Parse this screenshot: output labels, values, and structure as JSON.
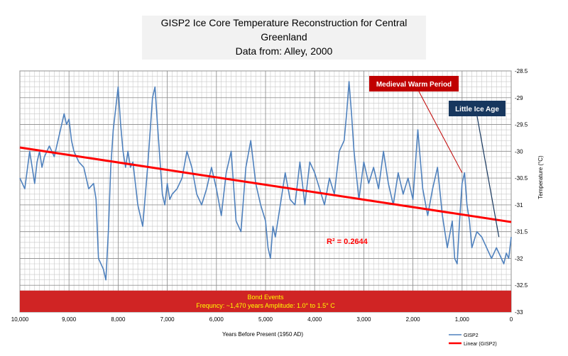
{
  "chart_data": {
    "type": "line",
    "title_lines": [
      "GISP2 Ice Core Temperature Reconstruction for Central",
      "Greenland",
      "Data from: Alley, 2000"
    ],
    "xlabel": "Years Before Present (1950 AD)",
    "ylabel": "Temperature (°C)",
    "x_reversed": true,
    "xlim": [
      10000,
      0
    ],
    "ylim": [
      -33,
      -28.5
    ],
    "x_ticks": [
      10000,
      9000,
      8000,
      7000,
      6000,
      5000,
      4000,
      3000,
      2000,
      1000,
      0
    ],
    "x_tick_labels": [
      "10,000",
      "9,000",
      "8,000",
      "7,000",
      "6,000",
      "5,000",
      "4,000",
      "3,000",
      "2,000",
      "1,000",
      "0"
    ],
    "y_ticks": [
      -28.5,
      -29,
      -29.5,
      -30,
      -30.5,
      -31,
      -31.5,
      -32,
      -32.5,
      -33
    ],
    "y_tick_labels": [
      "-28.5",
      "-29",
      "-29.5",
      "-30",
      "-30.5",
      "-31",
      "-31.5",
      "-32",
      "-32.5",
      "-33"
    ],
    "grid": true,
    "legend_position": "bottom-right",
    "series": [
      {
        "name": "GISP2",
        "color": "#4f81bd",
        "x": [
          10000,
          9900,
          9800,
          9750,
          9700,
          9650,
          9600,
          9550,
          9500,
          9400,
          9300,
          9200,
          9100,
          9050,
          9000,
          8950,
          8900,
          8800,
          8700,
          8600,
          8500,
          8450,
          8400,
          8300,
          8250,
          8200,
          8150,
          8100,
          8000,
          7950,
          7900,
          7850,
          7800,
          7750,
          7700,
          7600,
          7500,
          7400,
          7300,
          7250,
          7200,
          7100,
          7050,
          7000,
          6950,
          6900,
          6800,
          6700,
          6600,
          6500,
          6400,
          6300,
          6200,
          6100,
          6000,
          5900,
          5800,
          5700,
          5600,
          5500,
          5400,
          5300,
          5200,
          5100,
          5000,
          4950,
          4900,
          4850,
          4800,
          4700,
          4600,
          4500,
          4400,
          4300,
          4200,
          4100,
          4000,
          3900,
          3800,
          3700,
          3600,
          3500,
          3400,
          3350,
          3300,
          3250,
          3200,
          3100,
          3000,
          2900,
          2800,
          2700,
          2600,
          2500,
          2400,
          2300,
          2200,
          2100,
          2000,
          1900,
          1800,
          1700,
          1600,
          1500,
          1400,
          1300,
          1200,
          1150,
          1100,
          1050,
          1000,
          950,
          900,
          850,
          800,
          700,
          600,
          500,
          400,
          300,
          200,
          150,
          100,
          50,
          0
        ],
        "values": [
          -30.5,
          -30.7,
          -30.0,
          -30.3,
          -30.6,
          -30.2,
          -30.0,
          -30.3,
          -30.1,
          -29.9,
          -30.1,
          -29.7,
          -29.3,
          -29.5,
          -29.4,
          -29.8,
          -30.0,
          -30.2,
          -30.3,
          -30.7,
          -30.6,
          -30.9,
          -32.0,
          -32.2,
          -32.4,
          -31.5,
          -30.3,
          -29.6,
          -28.8,
          -29.5,
          -30.0,
          -30.3,
          -30.0,
          -30.3,
          -30.2,
          -31.0,
          -31.4,
          -30.3,
          -29.0,
          -28.8,
          -29.5,
          -30.8,
          -31.0,
          -30.6,
          -30.9,
          -30.8,
          -30.7,
          -30.5,
          -30.0,
          -30.3,
          -30.8,
          -31.0,
          -30.7,
          -30.3,
          -30.7,
          -31.2,
          -30.4,
          -30.0,
          -31.3,
          -31.5,
          -30.3,
          -29.8,
          -30.6,
          -31.0,
          -31.3,
          -31.8,
          -32.0,
          -31.4,
          -31.6,
          -31.0,
          -30.4,
          -30.9,
          -31.0,
          -30.2,
          -31.0,
          -30.2,
          -30.4,
          -30.7,
          -31.0,
          -30.5,
          -30.8,
          -30.0,
          -29.8,
          -29.3,
          -28.7,
          -29.3,
          -30.0,
          -30.9,
          -30.2,
          -30.6,
          -30.3,
          -30.7,
          -30.0,
          -30.6,
          -31.0,
          -30.4,
          -30.8,
          -30.5,
          -30.9,
          -29.6,
          -30.7,
          -31.2,
          -30.7,
          -30.3,
          -31.2,
          -31.8,
          -31.3,
          -32.0,
          -32.1,
          -31.3,
          -30.6,
          -30.4,
          -31.0,
          -31.3,
          -31.8,
          -31.5,
          -31.6,
          -31.8,
          -32.0,
          -31.8,
          -32.0,
          -32.1,
          -31.9,
          -32.0,
          -31.6
        ]
      },
      {
        "name": "Linear (GISP2)",
        "color": "#ff0000",
        "x": [
          10000,
          0
        ],
        "values": [
          -29.93,
          -31.32
        ]
      }
    ],
    "annotations": {
      "r_squared": "R² = 0.2644",
      "medieval": "Medieval Warm Period",
      "little_ice_age": "Little Ice Age",
      "bond_title": "Bond Events",
      "bond_desc": "Frequncy: ~1,470 years  Amplitude: 1.0° to 1.5° C",
      "medieval_color": "#c00000",
      "little_ice_age_color": "#17375e",
      "bond_band_color": "#d02424",
      "bond_text_color": "#ffff00",
      "r_squared_color": "#ff0000"
    },
    "bond_band_y": [
      -32.6,
      -33.0
    ]
  }
}
